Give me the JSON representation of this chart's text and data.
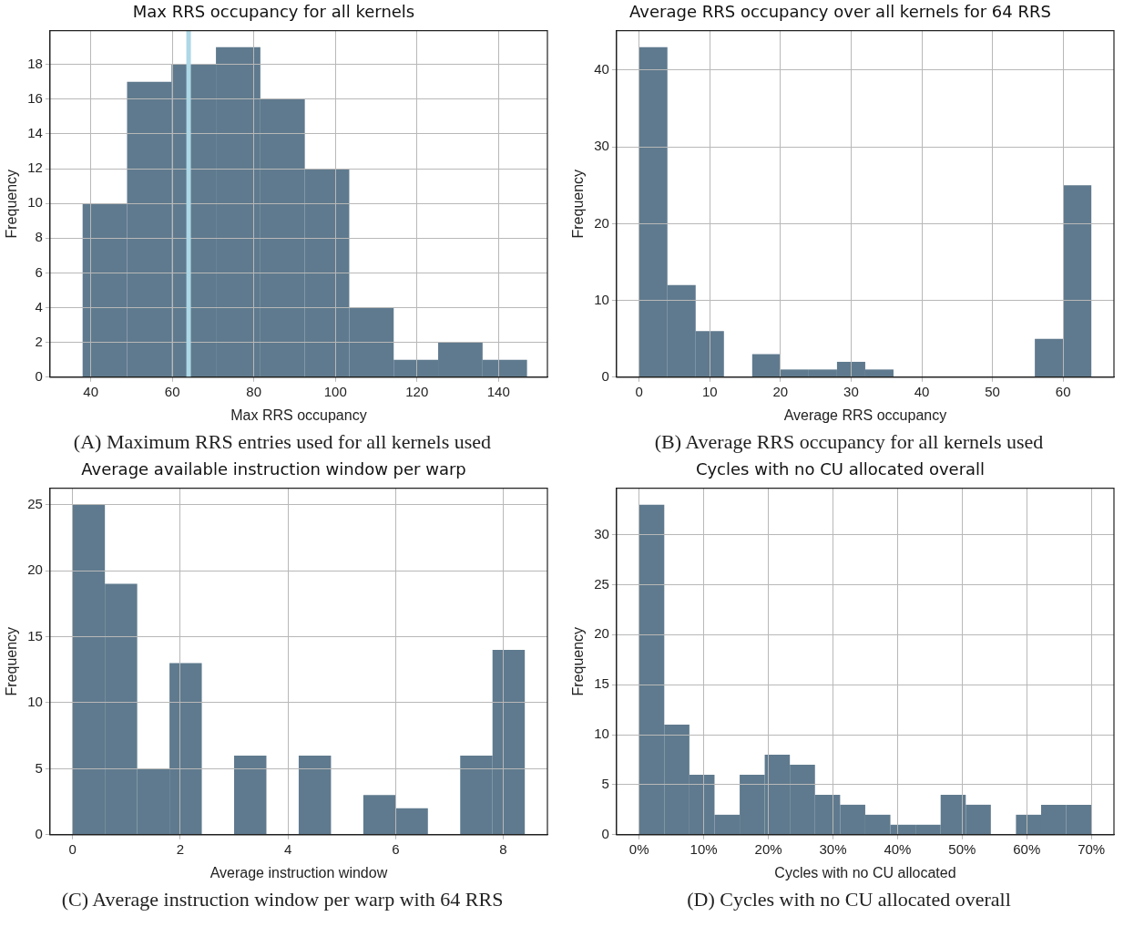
{
  "chart_data": [
    {
      "type": "histogram",
      "title": "Max RRS occupancy for all kernels",
      "xlabel": "Max RRS occupancy",
      "ylabel": "Frequency",
      "color": "#5f7a8e",
      "grid": true,
      "bins": [
        38,
        48.9,
        59.8,
        70.7,
        81.6,
        92.5,
        103.4,
        114.3,
        125.2,
        136.1,
        147
      ],
      "values": [
        10,
        17,
        18,
        19,
        16,
        12,
        4,
        1,
        2,
        1
      ],
      "xlim": [
        30,
        152
      ],
      "xticks": [
        40,
        60,
        80,
        100,
        120,
        140
      ],
      "ylim": [
        0,
        19.95
      ],
      "yticks": [
        0,
        2,
        4,
        6,
        8,
        10,
        12,
        14,
        16,
        18
      ],
      "ref_lines": [
        {
          "axis": "x",
          "value": 64,
          "color": "#add8e6"
        }
      ],
      "annotations": [
        "(A) Maximum RRS entries used for all kernels used"
      ]
    },
    {
      "type": "histogram",
      "title": "Average RRS occupancy over all kernels for 64 RRS",
      "xlabel": "Average RRS occupancy",
      "ylabel": "Frequency",
      "color": "#5f7a8e",
      "grid": true,
      "bins": [
        0,
        4,
        8,
        12,
        16,
        20,
        24,
        28,
        32,
        36,
        40,
        44,
        48,
        52,
        56,
        60,
        64
      ],
      "values": [
        43,
        12,
        6,
        0,
        3,
        1,
        1,
        2,
        1,
        0,
        0,
        0,
        0,
        0,
        5,
        25
      ],
      "xlim": [
        -3.2,
        67.2
      ],
      "xticks": [
        0,
        10,
        20,
        30,
        40,
        50,
        60
      ],
      "ylim": [
        0,
        45.15
      ],
      "yticks": [
        0,
        10,
        20,
        30,
        40
      ],
      "annotations": [
        "(B) Average RRS occupancy for all kernels used"
      ]
    },
    {
      "type": "histogram",
      "title": "Average available instruction window per warp",
      "xlabel": "Average instruction window",
      "ylabel": "Frequency",
      "color": "#5f7a8e",
      "grid": true,
      "bins": [
        0,
        0.6,
        1.2,
        1.8,
        2.4,
        3.0,
        3.6,
        4.2,
        4.8,
        5.4,
        6.0,
        6.6,
        7.2,
        7.8,
        8.4
      ],
      "values": [
        25,
        19,
        5,
        13,
        0,
        6,
        0,
        6,
        0,
        3,
        2,
        0,
        6,
        14
      ],
      "xlim": [
        -0.42,
        8.82
      ],
      "xticks": [
        0,
        2,
        4,
        6,
        8
      ],
      "ylim": [
        0,
        26.25
      ],
      "yticks": [
        0,
        5,
        10,
        15,
        20,
        25
      ],
      "annotations": [
        "(C) Average instruction window per warp with 64 RRS"
      ]
    },
    {
      "type": "histogram",
      "title": "Cycles with no CU allocated overall",
      "xlabel": "Cycles with no CU allocated",
      "ylabel": "Frequency",
      "color": "#5f7a8e",
      "grid": true,
      "bins": [
        0,
        3.89,
        7.78,
        11.67,
        15.56,
        19.44,
        23.33,
        27.22,
        31.11,
        35,
        38.89,
        42.78,
        46.67,
        50.56,
        54.44,
        58.33,
        62.22,
        66.11,
        70
      ],
      "values": [
        33,
        11,
        6,
        2,
        6,
        8,
        7,
        4,
        3,
        2,
        1,
        1,
        4,
        3,
        0,
        2,
        3,
        3
      ],
      "xlim": [
        -3.5,
        73.5
      ],
      "xticks": [
        {
          "value": 0,
          "label": "0%"
        },
        {
          "value": 10,
          "label": "10%"
        },
        {
          "value": 20,
          "label": "20%"
        },
        {
          "value": 30,
          "label": "30%"
        },
        {
          "value": 40,
          "label": "40%"
        },
        {
          "value": 50,
          "label": "50%"
        },
        {
          "value": 60,
          "label": "60%"
        },
        {
          "value": 70,
          "label": "70%"
        }
      ],
      "ylim": [
        0,
        34.65
      ],
      "yticks": [
        0,
        5,
        10,
        15,
        20,
        25,
        30
      ],
      "annotations": [
        "(D) Cycles with no CU allocated overall"
      ]
    }
  ]
}
